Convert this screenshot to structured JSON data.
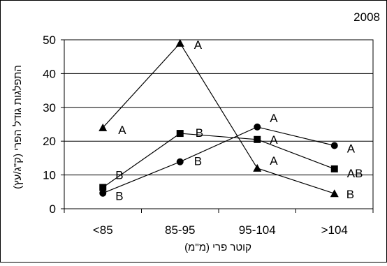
{
  "chart_data": {
    "type": "line",
    "title": "2008",
    "xlabel": "קוטר פרי (מ\"מ)",
    "ylabel": "התפלגות גודל הפרי (ק\"ג/עץ)",
    "categories": [
      "<85",
      "85-95",
      "95-104",
      ">104"
    ],
    "ylim": [
      0,
      50
    ],
    "yticks": [
      0,
      10,
      20,
      30,
      40,
      50
    ],
    "grid": true,
    "series": [
      {
        "marker": "triangle",
        "values": [
          24,
          49,
          12,
          4.5
        ],
        "labels": [
          "A",
          "A",
          "A",
          "B"
        ]
      },
      {
        "marker": "square",
        "values": [
          6.3,
          22.3,
          20.5,
          11.8
        ],
        "labels": [
          "B",
          "B",
          "A",
          "AB"
        ]
      },
      {
        "marker": "circle",
        "values": [
          4.6,
          13.9,
          24.2,
          18.7
        ],
        "labels": [
          "B",
          "B",
          "A",
          "A"
        ]
      }
    ]
  }
}
